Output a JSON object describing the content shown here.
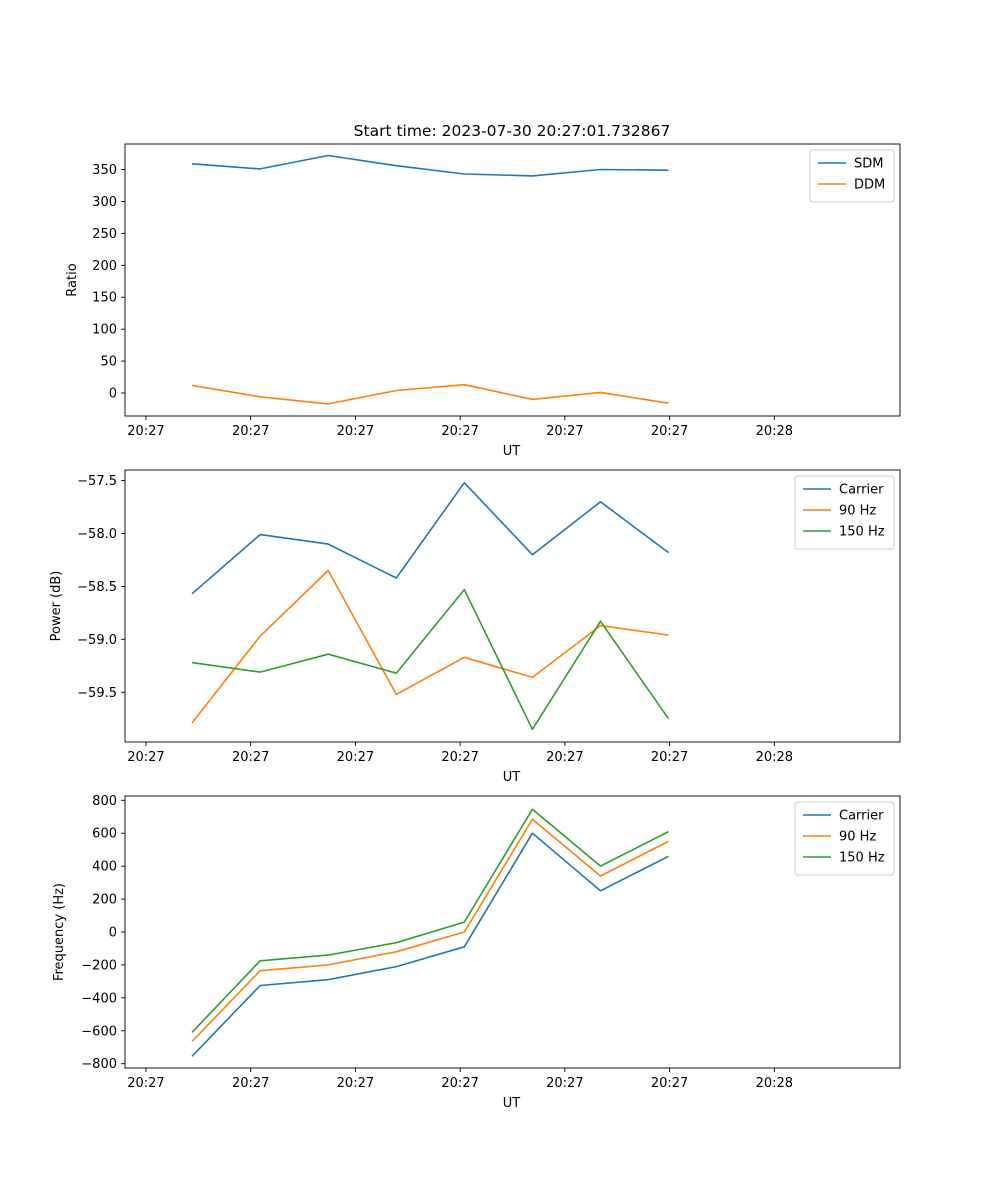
{
  "figure_title": "Start time: 2023-07-30 20:27:01.732867",
  "colors": {
    "blue": "#1f77b4",
    "orange": "#ff7f0e",
    "green": "#2ca02c"
  },
  "chart_data": [
    {
      "type": "line",
      "title": "Start time: 2023-07-30 20:27:01.732867",
      "xlabel": "UT",
      "ylabel": "Ratio",
      "x_tick_labels": [
        "20:27",
        "20:27",
        "20:27",
        "20:27",
        "20:27",
        "20:27",
        "20:28"
      ],
      "xlim": [
        0,
        7.4
      ],
      "x": [
        0.64,
        1.29,
        1.94,
        2.59,
        3.24,
        3.89,
        4.54,
        5.19
      ],
      "ylim": [
        -36,
        390
      ],
      "yticks": [
        0,
        50,
        100,
        150,
        200,
        250,
        300,
        350
      ],
      "legend_position": "top-right",
      "grid": false,
      "series": [
        {
          "name": "SDM",
          "color": "#1f77b4",
          "values": [
            359,
            351,
            372,
            356,
            343,
            340,
            350,
            349
          ]
        },
        {
          "name": "DDM",
          "color": "#ff7f0e",
          "values": [
            12,
            -6,
            -17,
            4,
            13,
            -10,
            1,
            -16
          ]
        }
      ]
    },
    {
      "type": "line",
      "title": "",
      "xlabel": "UT",
      "ylabel": "Power (dB)",
      "x_tick_labels": [
        "20:27",
        "20:27",
        "20:27",
        "20:27",
        "20:27",
        "20:27",
        "20:28"
      ],
      "xlim": [
        0,
        7.4
      ],
      "x": [
        0.64,
        1.29,
        1.94,
        2.59,
        3.24,
        3.89,
        4.54,
        5.19
      ],
      "ylim": [
        -59.97,
        -57.4
      ],
      "yticks": [
        -57.5,
        -58.0,
        -58.5,
        -59.0,
        -59.5
      ],
      "tick_labels": [
        "−57.5",
        "−58.0",
        "−58.5",
        "−59.0",
        "−59.5"
      ],
      "legend_position": "top-right",
      "grid": false,
      "series": [
        {
          "name": "Carrier",
          "color": "#1f77b4",
          "values": [
            -58.57,
            -58.01,
            -58.1,
            -58.42,
            -57.52,
            -58.2,
            -57.7,
            -58.18
          ]
        },
        {
          "name": "90 Hz",
          "color": "#ff7f0e",
          "values": [
            -59.79,
            -58.97,
            -58.35,
            -59.52,
            -59.17,
            -59.36,
            -58.87,
            -58.96
          ]
        },
        {
          "name": "150 Hz",
          "color": "#2ca02c",
          "values": [
            -59.22,
            -59.31,
            -59.14,
            -59.32,
            -58.53,
            -59.85,
            -58.83,
            -59.75
          ]
        }
      ]
    },
    {
      "type": "line",
      "title": "",
      "xlabel": "UT",
      "ylabel": "Frequency (Hz)",
      "x_tick_labels": [
        "20:27",
        "20:27",
        "20:27",
        "20:27",
        "20:27",
        "20:27",
        "20:28"
      ],
      "xlim": [
        0,
        7.4
      ],
      "x": [
        0.64,
        1.29,
        1.94,
        2.59,
        3.24,
        3.89,
        4.54,
        5.19
      ],
      "ylim": [
        -826,
        826
      ],
      "yticks": [
        800,
        600,
        400,
        200,
        0,
        -200,
        -400,
        -600,
        -800
      ],
      "tick_labels": [
        "800",
        "600",
        "400",
        "200",
        "0",
        "−200",
        "−400",
        "−600",
        "−800"
      ],
      "legend_position": "top-right",
      "grid": false,
      "series": [
        {
          "name": "Carrier",
          "color": "#1f77b4",
          "values": [
            -755,
            -325,
            -290,
            -210,
            -90,
            600,
            250,
            460
          ]
        },
        {
          "name": "90 Hz",
          "color": "#ff7f0e",
          "values": [
            -665,
            -235,
            -200,
            -120,
            0,
            685,
            340,
            550
          ]
        },
        {
          "name": "150 Hz",
          "color": "#2ca02c",
          "values": [
            -610,
            -175,
            -140,
            -65,
            60,
            745,
            400,
            610
          ]
        }
      ]
    }
  ]
}
